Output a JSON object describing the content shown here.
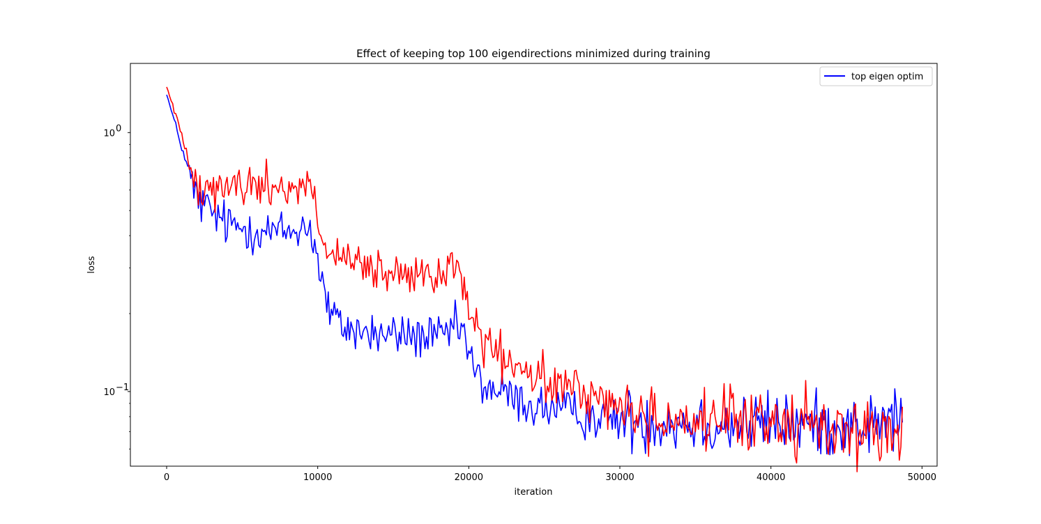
{
  "chart_data": {
    "type": "line",
    "title": "Effect of keeping top 100 eigendirections minimized during training",
    "xlabel": "iteration",
    "ylabel": "loss",
    "xlim": [
      -2400,
      51000
    ],
    "ylim": [
      0.0515,
      1.85
    ],
    "yscale": "log",
    "grid": false,
    "legend_position": "upper right",
    "x_ticks": [
      0,
      10000,
      20000,
      30000,
      40000,
      50000
    ],
    "x_tick_labels": [
      "0",
      "10000",
      "20000",
      "30000",
      "40000",
      "50000"
    ],
    "y_ticks": [
      1.0,
      0.1
    ],
    "y_tick_labels": {
      "major": [
        {
          "base": "10",
          "exp": "0",
          "value": 1.0
        },
        {
          "base": "10",
          "exp": "−1",
          "value": 0.1
        }
      ]
    },
    "series": [
      {
        "name": "top eigen optim",
        "color": "#0000ff",
        "x": [
          0,
          2000,
          4000,
          6000,
          8000,
          9500,
          10000,
          10500,
          11000,
          12000,
          14000,
          16000,
          18000,
          19500,
          20000,
          20500,
          21000,
          22000,
          24000,
          26000,
          28000,
          30000,
          32000,
          34000,
          36000,
          38000,
          40000,
          42000,
          44000,
          46000,
          48000,
          48700
        ],
        "y": [
          1.4,
          0.55,
          0.44,
          0.42,
          0.41,
          0.44,
          0.32,
          0.23,
          0.19,
          0.175,
          0.165,
          0.165,
          0.16,
          0.18,
          0.14,
          0.115,
          0.105,
          0.1,
          0.088,
          0.085,
          0.08,
          0.078,
          0.077,
          0.076,
          0.075,
          0.074,
          0.076,
          0.074,
          0.075,
          0.072,
          0.078,
          0.079
        ]
      },
      {
        "name": "",
        "color": "#ff0000",
        "x": [
          0,
          2000,
          4000,
          6000,
          8000,
          9500,
          10000,
          10500,
          11000,
          12000,
          14000,
          16000,
          18000,
          19500,
          20000,
          20500,
          21000,
          22000,
          24000,
          26000,
          28000,
          30000,
          32000,
          34000,
          36000,
          38000,
          40000,
          42000,
          44000,
          46000,
          48000,
          48700
        ],
        "y": [
          1.5,
          0.64,
          0.62,
          0.62,
          0.62,
          0.62,
          0.47,
          0.36,
          0.33,
          0.31,
          0.29,
          0.27,
          0.28,
          0.3,
          0.22,
          0.17,
          0.155,
          0.135,
          0.115,
          0.105,
          0.098,
          0.086,
          0.08,
          0.078,
          0.077,
          0.076,
          0.077,
          0.075,
          0.073,
          0.071,
          0.069,
          0.066
        ]
      }
    ]
  }
}
